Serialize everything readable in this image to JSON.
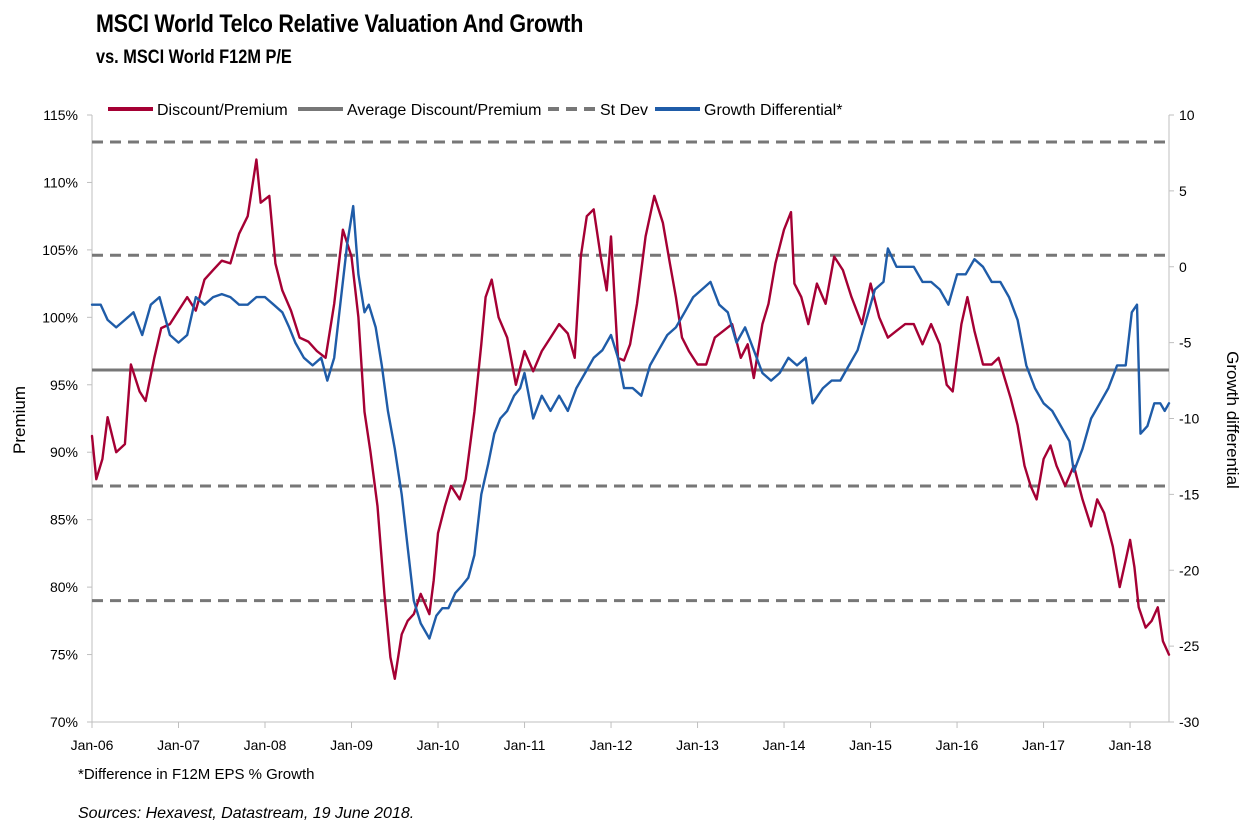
{
  "header": {
    "title": "MSCI World Telco Relative Valuation And Growth",
    "subtitle": "vs. MSCI World F12M P/E"
  },
  "footer": {
    "footnote": "*Difference in F12M EPS % Growth",
    "sources": "Sources: Hexavest, Datastream, 19 June 2018."
  },
  "colors": {
    "discount": "#A50034",
    "average": "#777777",
    "stdev": "#777777",
    "growth": "#1F5CA8"
  },
  "chart_data": {
    "type": "line",
    "x_ticks": [
      "Jan-06",
      "Jan-07",
      "Jan-08",
      "Jan-09",
      "Jan-10",
      "Jan-11",
      "Jan-12",
      "Jan-13",
      "Jan-14",
      "Jan-15",
      "Jan-16",
      "Jan-17",
      "Jan-18"
    ],
    "x_range": [
      2006.0,
      2018.45
    ],
    "y_left": {
      "label": "Premium",
      "range": [
        70,
        115
      ],
      "ticks": [
        "70%",
        "75%",
        "80%",
        "85%",
        "90%",
        "95%",
        "100%",
        "105%",
        "110%",
        "115%"
      ]
    },
    "y_right": {
      "label": "Growth differential",
      "range": [
        -30,
        10
      ],
      "ticks": [
        "-30",
        "-25",
        "-20",
        "-15",
        "-10",
        "-5",
        "0",
        "5",
        "10"
      ]
    },
    "legend": [
      "Discount/Premium",
      "Average Discount/Premium",
      "St Dev",
      "Growth Differential*"
    ],
    "reference_lines": {
      "average": 96.1,
      "stdev": [
        79.0,
        87.5,
        104.6,
        113.0
      ]
    },
    "series": [
      {
        "name": "Discount/Premium",
        "axis": "left",
        "points": [
          [
            2006.0,
            91.2
          ],
          [
            2006.05,
            88.0
          ],
          [
            2006.12,
            89.5
          ],
          [
            2006.18,
            92.6
          ],
          [
            2006.28,
            90.0
          ],
          [
            2006.38,
            90.6
          ],
          [
            2006.45,
            96.5
          ],
          [
            2006.55,
            94.5
          ],
          [
            2006.62,
            93.8
          ],
          [
            2006.72,
            97.0
          ],
          [
            2006.8,
            99.2
          ],
          [
            2006.9,
            99.5
          ],
          [
            2007.0,
            100.5
          ],
          [
            2007.1,
            101.5
          ],
          [
            2007.2,
            100.5
          ],
          [
            2007.3,
            102.8
          ],
          [
            2007.4,
            103.5
          ],
          [
            2007.5,
            104.2
          ],
          [
            2007.6,
            104.0
          ],
          [
            2007.7,
            106.2
          ],
          [
            2007.8,
            107.5
          ],
          [
            2007.9,
            111.7
          ],
          [
            2007.95,
            108.5
          ],
          [
            2008.05,
            109.0
          ],
          [
            2008.12,
            104.0
          ],
          [
            2008.2,
            102.0
          ],
          [
            2008.3,
            100.5
          ],
          [
            2008.4,
            98.5
          ],
          [
            2008.5,
            98.2
          ],
          [
            2008.6,
            97.5
          ],
          [
            2008.7,
            97.0
          ],
          [
            2008.8,
            101.0
          ],
          [
            2008.9,
            106.5
          ],
          [
            2009.0,
            104.5
          ],
          [
            2009.08,
            100.0
          ],
          [
            2009.15,
            93.0
          ],
          [
            2009.22,
            90.0
          ],
          [
            2009.3,
            86.0
          ],
          [
            2009.38,
            79.5
          ],
          [
            2009.45,
            74.8
          ],
          [
            2009.5,
            73.2
          ],
          [
            2009.58,
            76.5
          ],
          [
            2009.65,
            77.5
          ],
          [
            2009.72,
            78.0
          ],
          [
            2009.8,
            79.5
          ],
          [
            2009.9,
            78.0
          ],
          [
            2009.95,
            80.5
          ],
          [
            2010.0,
            84.0
          ],
          [
            2010.08,
            86.0
          ],
          [
            2010.15,
            87.5
          ],
          [
            2010.25,
            86.5
          ],
          [
            2010.32,
            88.0
          ],
          [
            2010.42,
            93.0
          ],
          [
            2010.5,
            98.0
          ],
          [
            2010.55,
            101.5
          ],
          [
            2010.62,
            102.8
          ],
          [
            2010.7,
            100.0
          ],
          [
            2010.8,
            98.5
          ],
          [
            2010.9,
            95.0
          ],
          [
            2011.0,
            97.5
          ],
          [
            2011.1,
            96.0
          ],
          [
            2011.2,
            97.5
          ],
          [
            2011.3,
            98.5
          ],
          [
            2011.4,
            99.5
          ],
          [
            2011.5,
            98.8
          ],
          [
            2011.58,
            97.0
          ],
          [
            2011.65,
            104.5
          ],
          [
            2011.72,
            107.5
          ],
          [
            2011.8,
            108.0
          ],
          [
            2011.88,
            104.5
          ],
          [
            2011.95,
            102.0
          ],
          [
            2012.0,
            106.0
          ],
          [
            2012.08,
            97.0
          ],
          [
            2012.15,
            96.8
          ],
          [
            2012.22,
            98.0
          ],
          [
            2012.3,
            101.0
          ],
          [
            2012.4,
            106.0
          ],
          [
            2012.5,
            109.0
          ],
          [
            2012.6,
            107.0
          ],
          [
            2012.68,
            104.0
          ],
          [
            2012.75,
            101.5
          ],
          [
            2012.82,
            98.5
          ],
          [
            2012.9,
            97.5
          ],
          [
            2013.0,
            96.5
          ],
          [
            2013.1,
            96.5
          ],
          [
            2013.2,
            98.5
          ],
          [
            2013.3,
            99.0
          ],
          [
            2013.4,
            99.5
          ],
          [
            2013.5,
            97.0
          ],
          [
            2013.58,
            98.0
          ],
          [
            2013.65,
            95.5
          ],
          [
            2013.75,
            99.5
          ],
          [
            2013.82,
            101.0
          ],
          [
            2013.9,
            104.0
          ],
          [
            2014.0,
            106.5
          ],
          [
            2014.08,
            107.8
          ],
          [
            2014.12,
            102.5
          ],
          [
            2014.2,
            101.5
          ],
          [
            2014.28,
            99.5
          ],
          [
            2014.38,
            102.5
          ],
          [
            2014.48,
            101.0
          ],
          [
            2014.58,
            104.5
          ],
          [
            2014.68,
            103.5
          ],
          [
            2014.78,
            101.5
          ],
          [
            2014.9,
            99.5
          ],
          [
            2015.0,
            102.5
          ],
          [
            2015.1,
            100.0
          ],
          [
            2015.2,
            98.5
          ],
          [
            2015.3,
            99.0
          ],
          [
            2015.4,
            99.5
          ],
          [
            2015.5,
            99.5
          ],
          [
            2015.6,
            98.0
          ],
          [
            2015.7,
            99.5
          ],
          [
            2015.8,
            98.0
          ],
          [
            2015.88,
            95.0
          ],
          [
            2015.95,
            94.5
          ],
          [
            2016.05,
            99.5
          ],
          [
            2016.12,
            101.5
          ],
          [
            2016.2,
            99.0
          ],
          [
            2016.3,
            96.5
          ],
          [
            2016.4,
            96.5
          ],
          [
            2016.48,
            97.0
          ],
          [
            2016.55,
            95.5
          ],
          [
            2016.62,
            94.0
          ],
          [
            2016.7,
            92.0
          ],
          [
            2016.78,
            89.0
          ],
          [
            2016.85,
            87.5
          ],
          [
            2016.92,
            86.5
          ],
          [
            2017.0,
            89.5
          ],
          [
            2017.08,
            90.5
          ],
          [
            2017.15,
            89.0
          ],
          [
            2017.25,
            87.5
          ],
          [
            2017.35,
            89.0
          ],
          [
            2017.45,
            86.5
          ],
          [
            2017.55,
            84.5
          ],
          [
            2017.62,
            86.5
          ],
          [
            2017.7,
            85.5
          ],
          [
            2017.8,
            83.0
          ],
          [
            2017.88,
            80.0
          ],
          [
            2017.95,
            82.0
          ],
          [
            2018.0,
            83.5
          ],
          [
            2018.05,
            81.5
          ],
          [
            2018.1,
            78.5
          ],
          [
            2018.18,
            77.0
          ],
          [
            2018.25,
            77.5
          ],
          [
            2018.32,
            78.5
          ],
          [
            2018.38,
            76.0
          ],
          [
            2018.45,
            75.0
          ]
        ]
      },
      {
        "name": "Growth Differential*",
        "axis": "right",
        "points": [
          [
            2006.0,
            -2.5
          ],
          [
            2006.1,
            -2.5
          ],
          [
            2006.18,
            -3.5
          ],
          [
            2006.28,
            -4.0
          ],
          [
            2006.38,
            -3.5
          ],
          [
            2006.48,
            -3.0
          ],
          [
            2006.58,
            -4.5
          ],
          [
            2006.68,
            -2.5
          ],
          [
            2006.78,
            -2.0
          ],
          [
            2006.9,
            -4.5
          ],
          [
            2007.0,
            -5.0
          ],
          [
            2007.1,
            -4.5
          ],
          [
            2007.2,
            -2.0
          ],
          [
            2007.3,
            -2.5
          ],
          [
            2007.4,
            -2.0
          ],
          [
            2007.5,
            -1.8
          ],
          [
            2007.6,
            -2.0
          ],
          [
            2007.7,
            -2.5
          ],
          [
            2007.8,
            -2.5
          ],
          [
            2007.9,
            -2.0
          ],
          [
            2008.0,
            -2.0
          ],
          [
            2008.1,
            -2.5
          ],
          [
            2008.2,
            -3.0
          ],
          [
            2008.28,
            -4.0
          ],
          [
            2008.35,
            -5.0
          ],
          [
            2008.45,
            -6.0
          ],
          [
            2008.55,
            -6.5
          ],
          [
            2008.65,
            -6.0
          ],
          [
            2008.72,
            -7.5
          ],
          [
            2008.8,
            -6.0
          ],
          [
            2008.88,
            -2.0
          ],
          [
            2008.95,
            1.5
          ],
          [
            2009.02,
            4.0
          ],
          [
            2009.08,
            -0.5
          ],
          [
            2009.15,
            -3.0
          ],
          [
            2009.2,
            -2.5
          ],
          [
            2009.28,
            -4.0
          ],
          [
            2009.35,
            -6.5
          ],
          [
            2009.42,
            -9.5
          ],
          [
            2009.5,
            -12.0
          ],
          [
            2009.58,
            -15.0
          ],
          [
            2009.65,
            -18.5
          ],
          [
            2009.72,
            -22.0
          ],
          [
            2009.8,
            -23.5
          ],
          [
            2009.9,
            -24.5
          ],
          [
            2009.98,
            -23.0
          ],
          [
            2010.05,
            -22.5
          ],
          [
            2010.12,
            -22.5
          ],
          [
            2010.2,
            -21.5
          ],
          [
            2010.28,
            -21.0
          ],
          [
            2010.35,
            -20.5
          ],
          [
            2010.42,
            -19.0
          ],
          [
            2010.5,
            -15.0
          ],
          [
            2010.58,
            -13.0
          ],
          [
            2010.65,
            -11.0
          ],
          [
            2010.72,
            -10.0
          ],
          [
            2010.8,
            -9.5
          ],
          [
            2010.88,
            -8.5
          ],
          [
            2010.95,
            -8.0
          ],
          [
            2011.0,
            -7.0
          ],
          [
            2011.1,
            -10.0
          ],
          [
            2011.2,
            -8.5
          ],
          [
            2011.3,
            -9.5
          ],
          [
            2011.4,
            -8.5
          ],
          [
            2011.5,
            -9.5
          ],
          [
            2011.6,
            -8.0
          ],
          [
            2011.7,
            -7.0
          ],
          [
            2011.8,
            -6.0
          ],
          [
            2011.9,
            -5.5
          ],
          [
            2012.0,
            -4.5
          ],
          [
            2012.08,
            -6.0
          ],
          [
            2012.15,
            -8.0
          ],
          [
            2012.25,
            -8.0
          ],
          [
            2012.35,
            -8.5
          ],
          [
            2012.45,
            -6.5
          ],
          [
            2012.55,
            -5.5
          ],
          [
            2012.65,
            -4.5
          ],
          [
            2012.75,
            -4.0
          ],
          [
            2012.85,
            -3.0
          ],
          [
            2012.95,
            -2.0
          ],
          [
            2013.05,
            -1.5
          ],
          [
            2013.15,
            -1.0
          ],
          [
            2013.25,
            -2.5
          ],
          [
            2013.35,
            -3.0
          ],
          [
            2013.45,
            -5.0
          ],
          [
            2013.55,
            -4.0
          ],
          [
            2013.65,
            -5.5
          ],
          [
            2013.75,
            -7.0
          ],
          [
            2013.85,
            -7.5
          ],
          [
            2013.95,
            -7.0
          ],
          [
            2014.05,
            -6.0
          ],
          [
            2014.15,
            -6.5
          ],
          [
            2014.25,
            -6.0
          ],
          [
            2014.33,
            -9.0
          ],
          [
            2014.45,
            -8.0
          ],
          [
            2014.55,
            -7.5
          ],
          [
            2014.65,
            -7.5
          ],
          [
            2014.75,
            -6.5
          ],
          [
            2014.85,
            -5.5
          ],
          [
            2014.95,
            -3.5
          ],
          [
            2015.05,
            -1.5
          ],
          [
            2015.15,
            -1.0
          ],
          [
            2015.2,
            1.2
          ],
          [
            2015.3,
            0.0
          ],
          [
            2015.4,
            0.0
          ],
          [
            2015.5,
            0.0
          ],
          [
            2015.6,
            -1.0
          ],
          [
            2015.7,
            -1.0
          ],
          [
            2015.8,
            -1.5
          ],
          [
            2015.9,
            -2.5
          ],
          [
            2016.0,
            -0.5
          ],
          [
            2016.1,
            -0.5
          ],
          [
            2016.2,
            0.5
          ],
          [
            2016.3,
            0.0
          ],
          [
            2016.4,
            -1.0
          ],
          [
            2016.5,
            -1.0
          ],
          [
            2016.6,
            -2.0
          ],
          [
            2016.7,
            -3.5
          ],
          [
            2016.8,
            -6.5
          ],
          [
            2016.9,
            -8.0
          ],
          [
            2017.0,
            -9.0
          ],
          [
            2017.1,
            -9.5
          ],
          [
            2017.2,
            -10.5
          ],
          [
            2017.3,
            -11.5
          ],
          [
            2017.35,
            -13.5
          ],
          [
            2017.45,
            -12.0
          ],
          [
            2017.55,
            -10.0
          ],
          [
            2017.65,
            -9.0
          ],
          [
            2017.75,
            -8.0
          ],
          [
            2017.85,
            -6.5
          ],
          [
            2017.95,
            -6.5
          ],
          [
            2018.02,
            -3.0
          ],
          [
            2018.08,
            -2.5
          ],
          [
            2018.12,
            -11.0
          ],
          [
            2018.2,
            -10.5
          ],
          [
            2018.28,
            -9.0
          ],
          [
            2018.35,
            -9.0
          ],
          [
            2018.4,
            -9.5
          ],
          [
            2018.45,
            -9.0
          ]
        ]
      }
    ]
  }
}
